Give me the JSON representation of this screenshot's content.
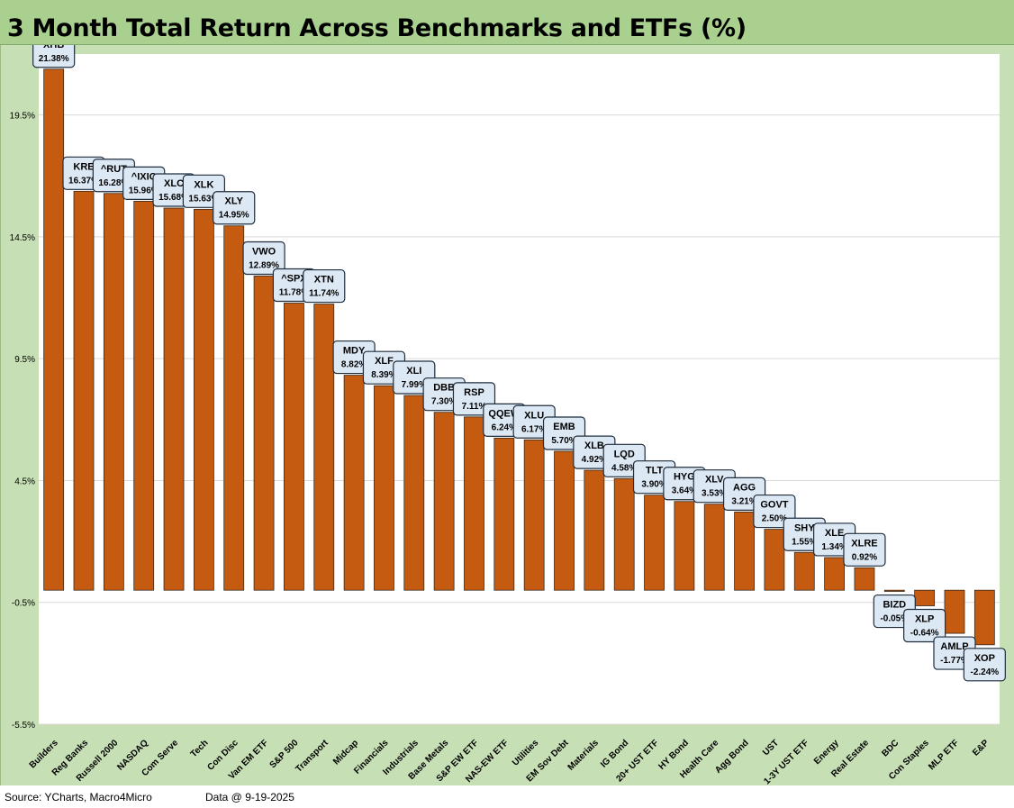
{
  "title": "3 Month Total Return Across Benchmarks and ETFs (%)",
  "footer": {
    "source": "Source: YCharts, Macro4Micro",
    "date": "Data @ 9-19-2025"
  },
  "colors": {
    "bar": "#c55a11",
    "label_bg": "#dde8f5",
    "frame": "#c6dfb4",
    "title_bg": "#a9d08e",
    "grid": "#d9d9d9"
  },
  "chart_data": {
    "type": "bar",
    "title": "3 Month Total Return Across Benchmarks and ETFs (%)",
    "xlabel": "",
    "ylabel": "",
    "ylim": [
      -5.5,
      22.0
    ],
    "yticks": [
      "-5.5%",
      "-0.5%",
      "4.5%",
      "9.5%",
      "14.5%",
      "19.5%"
    ],
    "ytick_values": [
      -5.5,
      -0.5,
      4.5,
      9.5,
      14.5,
      19.5
    ],
    "grid": true,
    "categories": [
      "Builders",
      "Reg Banks",
      "Russell 2000",
      "NASDAQ",
      "Com Serve",
      "Tech",
      "Con Disc",
      "Van EM ETF",
      "S&P 500",
      "Transport",
      "Midcap",
      "Financials",
      "Industrials",
      "Base Metals",
      "S&P EW ETF",
      "NAS-EW ETF",
      "Utilities",
      "EM Sov Debt",
      "Materials",
      "IG Bond",
      "20+ UST ETF",
      "HY Bond",
      "Health Care",
      "Agg Bond",
      "UST",
      "1-3Y UST ETF",
      "Energy",
      "Real Estate",
      "BDC",
      "Con Staples",
      "MLP ETF",
      "E&P"
    ],
    "tickers": [
      "XHB",
      "KRE",
      "^RUT",
      "^IXIC",
      "XLC",
      "XLK",
      "XLY",
      "VWO",
      "^SPX",
      "XTN",
      "MDY",
      "XLF",
      "XLI",
      "DBB",
      "RSP",
      "QQEW",
      "XLU",
      "EMB",
      "XLB",
      "LQD",
      "TLT",
      "HYG",
      "XLV",
      "AGG",
      "GOVT",
      "SHY",
      "XLE",
      "XLRE",
      "BIZD",
      "XLP",
      "AMLP",
      "XOP"
    ],
    "values": [
      21.38,
      16.37,
      16.28,
      15.96,
      15.68,
      15.63,
      14.95,
      12.89,
      11.78,
      11.74,
      8.82,
      8.39,
      7.99,
      7.3,
      7.11,
      6.24,
      6.17,
      5.7,
      4.92,
      4.58,
      3.9,
      3.64,
      3.53,
      3.21,
      2.5,
      1.55,
      1.34,
      0.92,
      -0.05,
      -0.64,
      -1.77,
      -2.24
    ],
    "value_labels": [
      "21.38%",
      "16.37%",
      "16.28%",
      "15.96%",
      "15.68%",
      "15.63%",
      "14.95%",
      "12.89%",
      "11.78%",
      "11.74%",
      "8.82%",
      "8.39%",
      "7.99%",
      "7.30%",
      "7.11%",
      "6.24%",
      "6.17%",
      "5.70%",
      "4.92%",
      "4.58%",
      "3.90%",
      "3.64%",
      "3.53%",
      "3.21%",
      "2.50%",
      "1.55%",
      "1.34%",
      "0.92%",
      "-0.05%",
      "-0.64%",
      "-1.77%",
      "-2.24%"
    ]
  }
}
